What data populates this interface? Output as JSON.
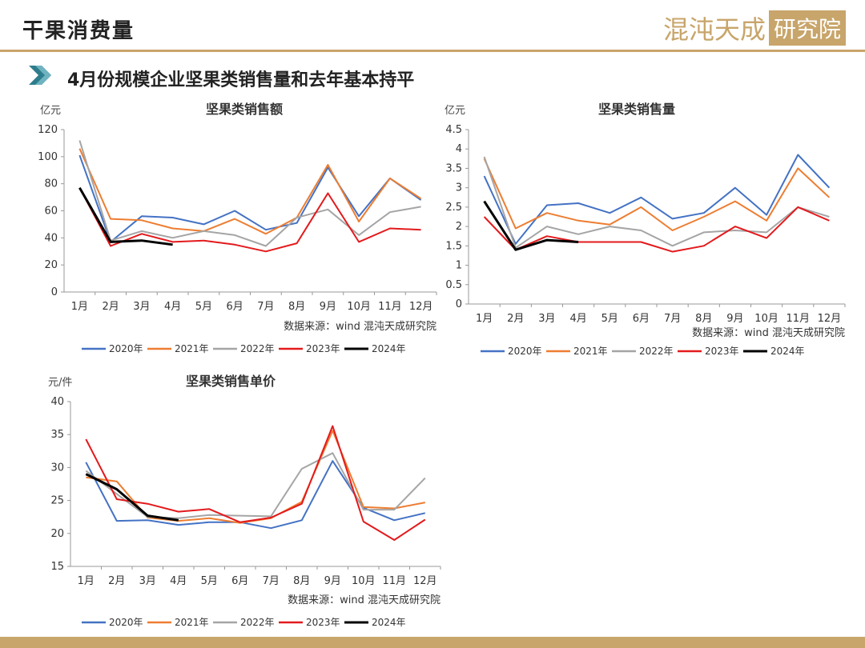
{
  "header": {
    "title": "干果消费量",
    "logo_text": "混沌天成",
    "logo_box": "研究院",
    "subtitle": "4月份规模企业坚果类销售量和去年基本持平"
  },
  "colors": {
    "2020年": "#4472c4",
    "2021年": "#ed7d31",
    "2022年": "#a5a5a5",
    "2023年": "#e31a1c",
    "2024年": "#000000",
    "accent": "#c8a56a"
  },
  "chart_data": [
    {
      "type": "line",
      "title": "坚果类销售额",
      "unit": "亿元",
      "source": "数据来源：wind  混沌天成研究院",
      "categories": [
        "1月",
        "2月",
        "3月",
        "4月",
        "5月",
        "6月",
        "7月",
        "8月",
        "9月",
        "10月",
        "11月",
        "12月"
      ],
      "ylim": [
        0,
        120
      ],
      "yticks": [
        "0",
        "20",
        "40",
        "60",
        "80",
        "100",
        "120"
      ],
      "legend_position": "bottom",
      "series": [
        {
          "name": "2020年",
          "values": [
            101,
            37,
            56,
            55,
            50,
            60,
            46,
            51,
            92,
            56,
            84,
            68
          ]
        },
        {
          "name": "2021年",
          "values": [
            106,
            54,
            53,
            47,
            45,
            54,
            43,
            55,
            94,
            52,
            84,
            69
          ]
        },
        {
          "name": "2022年",
          "values": [
            112,
            38,
            45,
            40,
            45,
            42,
            34,
            55,
            61,
            42,
            59,
            63
          ]
        },
        {
          "name": "2023年",
          "values": [
            77,
            34,
            43,
            37,
            38,
            35,
            30,
            36,
            73,
            37,
            47,
            46
          ]
        },
        {
          "name": "2024年",
          "values": [
            77,
            37,
            38,
            35,
            null,
            null,
            null,
            null,
            null,
            null,
            null,
            null
          ]
        }
      ]
    },
    {
      "type": "line",
      "title": "坚果类销售量",
      "unit": "亿元",
      "source": "数据来源：wind  混沌天成研究院",
      "categories": [
        "1月",
        "2月",
        "3月",
        "4月",
        "5月",
        "6月",
        "7月",
        "8月",
        "9月",
        "10月",
        "11月",
        "12月"
      ],
      "ylim": [
        0,
        4.5
      ],
      "yticks": [
        "0",
        "0.5",
        "1",
        "1.5",
        "2",
        "2.5",
        "3",
        "3.5",
        "4",
        "4.5"
      ],
      "legend_position": "bottom",
      "series": [
        {
          "name": "2020年",
          "values": [
            3.3,
            1.55,
            2.55,
            2.6,
            2.35,
            2.75,
            2.2,
            2.35,
            3.0,
            2.3,
            3.85,
            3.0
          ]
        },
        {
          "name": "2021年",
          "values": [
            3.75,
            1.95,
            2.35,
            2.15,
            2.05,
            2.5,
            1.9,
            2.25,
            2.65,
            2.15,
            3.5,
            2.75
          ]
        },
        {
          "name": "2022年",
          "values": [
            3.8,
            1.45,
            2.0,
            1.8,
            2.0,
            1.9,
            1.5,
            1.85,
            1.9,
            1.85,
            2.5,
            2.25
          ]
        },
        {
          "name": "2023年",
          "values": [
            2.25,
            1.4,
            1.75,
            1.6,
            1.6,
            1.6,
            1.35,
            1.5,
            2.0,
            1.7,
            2.5,
            2.15
          ]
        },
        {
          "name": "2024年",
          "values": [
            2.65,
            1.4,
            1.65,
            1.6,
            null,
            null,
            null,
            null,
            null,
            null,
            null,
            null
          ]
        }
      ]
    },
    {
      "type": "line",
      "title": "坚果类销售单价",
      "unit": "元/件",
      "source": "数据来源：wind  混沌天成研究院",
      "categories": [
        "1月",
        "2月",
        "3月",
        "4月",
        "5月",
        "6月",
        "7月",
        "8月",
        "9月",
        "10月",
        "11月",
        "12月"
      ],
      "ylim": [
        15,
        40
      ],
      "yticks": [
        "15",
        "20",
        "25",
        "30",
        "35",
        "40"
      ],
      "legend_position": "bottom",
      "series": [
        {
          "name": "2020年",
          "values": [
            30.8,
            21.9,
            22.0,
            21.3,
            21.7,
            21.7,
            20.8,
            22.0,
            31.0,
            23.9,
            22.0,
            23.1
          ]
        },
        {
          "name": "2021年",
          "values": [
            28.5,
            27.9,
            22.4,
            21.9,
            22.3,
            21.6,
            22.3,
            24.8,
            35.6,
            24.0,
            23.8,
            24.7
          ]
        },
        {
          "name": "2022年",
          "values": [
            29.5,
            26.0,
            22.5,
            22.3,
            22.8,
            22.7,
            22.6,
            29.8,
            32.2,
            23.6,
            23.6,
            28.4
          ]
        },
        {
          "name": "2023年",
          "values": [
            34.3,
            25.2,
            24.5,
            23.3,
            23.7,
            21.7,
            22.4,
            24.5,
            36.3,
            21.8,
            19.0,
            22.1
          ]
        },
        {
          "name": "2024年",
          "values": [
            29.0,
            26.7,
            22.7,
            22.0,
            null,
            null,
            null,
            null,
            null,
            null,
            null,
            null
          ]
        }
      ]
    }
  ]
}
